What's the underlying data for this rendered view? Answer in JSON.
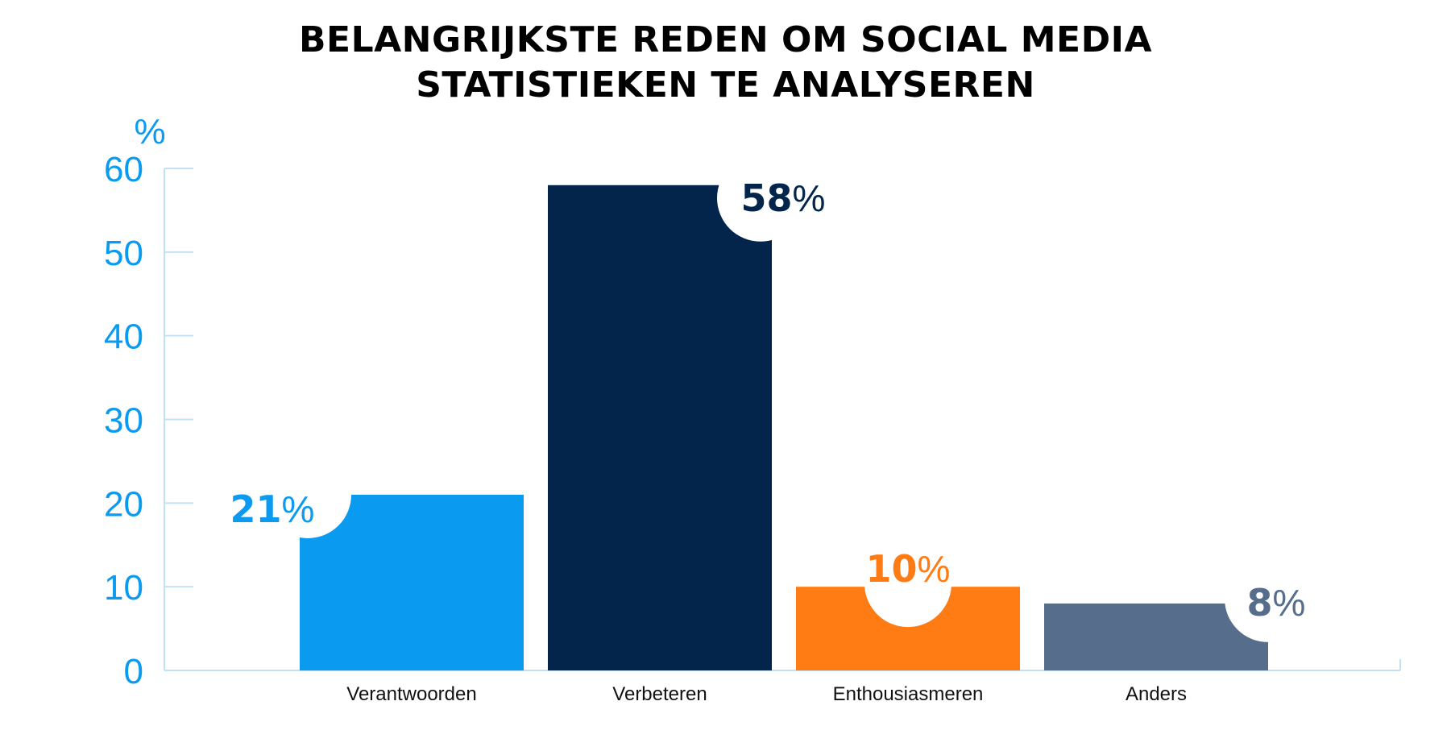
{
  "chart_data": {
    "type": "bar",
    "title_lines": [
      "BELANGRIJKSTE REDEN OM SOCIAL MEDIA",
      "STATISTIEKEN TE ANALYSEREN"
    ],
    "ylabel": "%",
    "ylim": [
      0,
      60
    ],
    "yticks": [
      "0",
      "10",
      "20",
      "30",
      "40",
      "50",
      "60"
    ],
    "categories": [
      "Verantwoorden",
      "Verbeteren",
      "Enthousiasmeren",
      "Anders"
    ],
    "values": [
      21,
      58,
      10,
      8
    ],
    "value_labels": [
      "21",
      "58",
      "10",
      "8"
    ],
    "percent_sign": "%",
    "colors": [
      "#0a9bf0",
      "#03254c",
      "#ff7b13",
      "#566e8b"
    ],
    "axis_color": "#bfe2f7"
  }
}
